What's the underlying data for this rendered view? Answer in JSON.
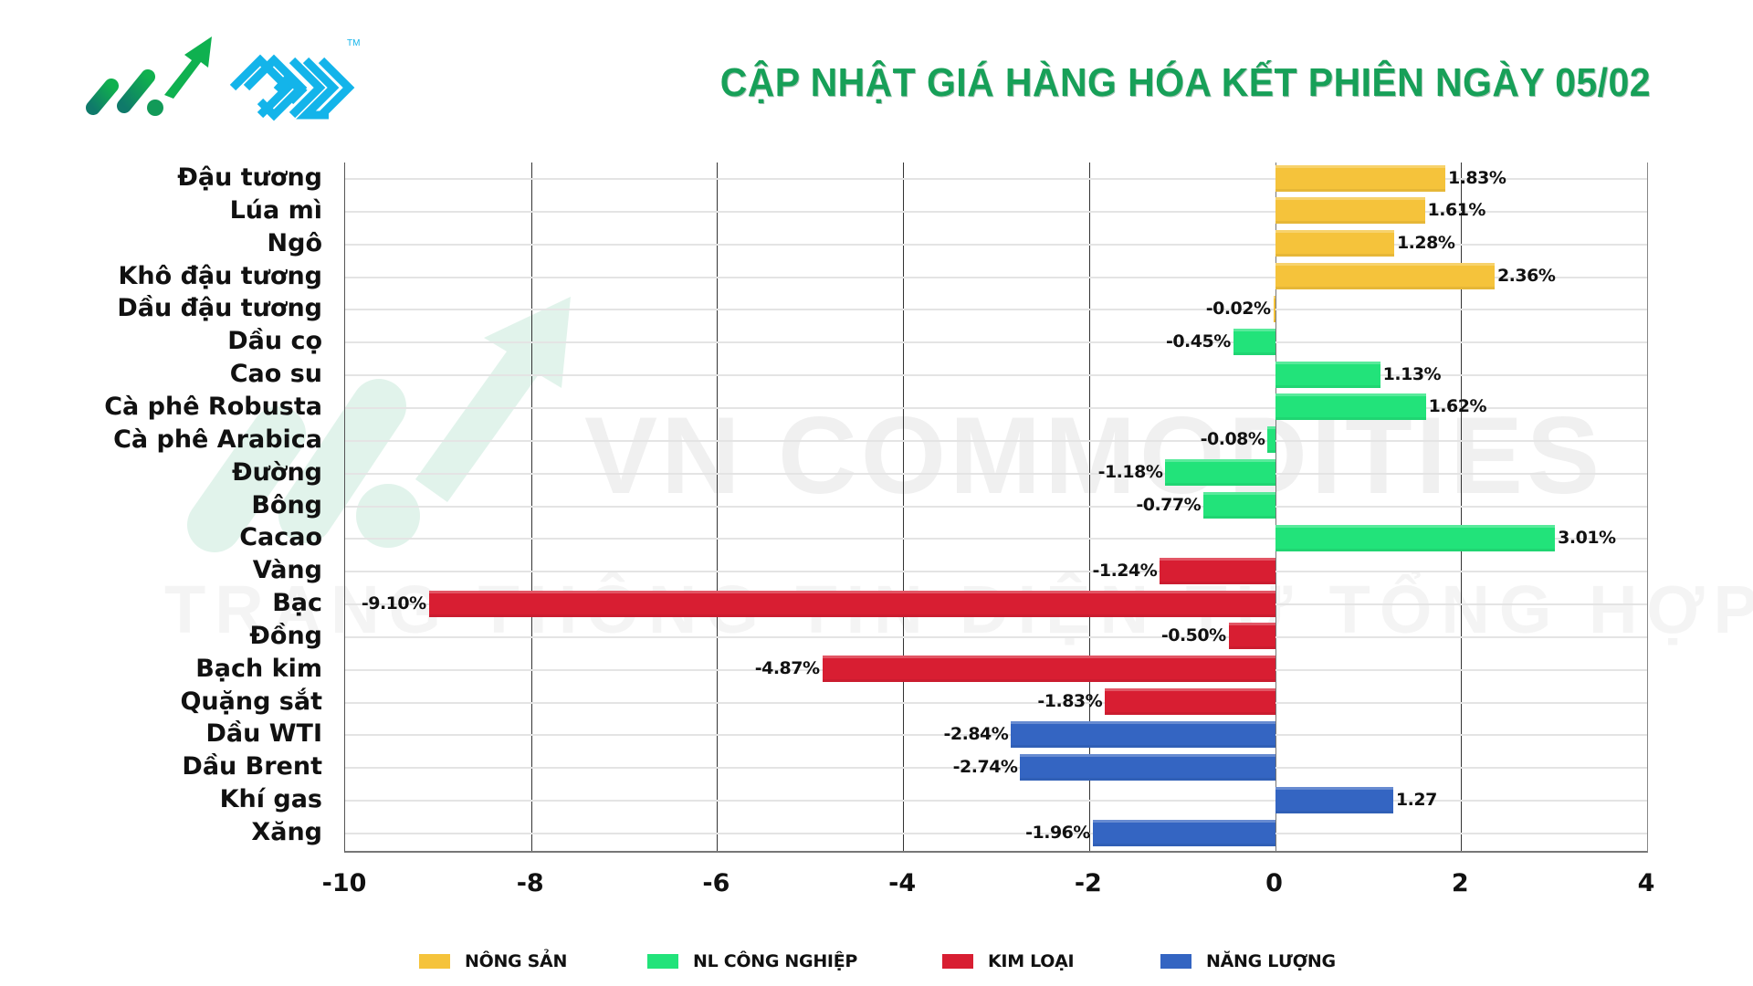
{
  "header": {
    "title": "CẬP NHẬT GIÁ HÀNG HÓA KẾT PHIÊN NGÀY 05/02",
    "logo_trademark": "TM"
  },
  "watermark": {
    "line1": "VN COMMODITIES",
    "line2": "TRANG THÔNG TIN ĐIỆN TỬ TỔNG HỢP"
  },
  "colors": {
    "title": "#17a058",
    "nong_san": "#f5c33b",
    "nl_cong_nghiep": "#22e37a",
    "kim_loai": "#d81e32",
    "nang_luong": "#3465c2"
  },
  "legend": [
    {
      "label": "NÔNG SẢN",
      "color": "#f5c33b"
    },
    {
      "label": "NL CÔNG NGHIỆP",
      "color": "#22e37a"
    },
    {
      "label": "KIM LOẠI",
      "color": "#d81e32"
    },
    {
      "label": "NĂNG LƯỢNG",
      "color": "#3465c2"
    }
  ],
  "chart_data": {
    "type": "bar",
    "orientation": "horizontal",
    "title": "CẬP NHẬT GIÁ HÀNG HÓA KẾT PHIÊN NGÀY 05/02",
    "xlabel": "",
    "ylabel": "",
    "xlim": [
      -10,
      4
    ],
    "xticks": [
      -10,
      -8,
      -6,
      -4,
      -2,
      0,
      2,
      4
    ],
    "grid": true,
    "legend_position": "bottom",
    "categories": [
      "Đậu tương",
      "Lúa mì",
      "Ngô",
      "Khô đậu tương",
      "Dầu đậu tương",
      "Dầu cọ",
      "Cao su",
      "Cà phê Robusta",
      "Cà phê Arabica",
      "Đường",
      "Bông",
      "Cacao",
      "Vàng",
      "Bạc",
      "Đồng",
      "Bạch kim",
      "Quặng sắt",
      "Dầu WTI",
      "Dầu Brent",
      "Khí gas",
      "Xăng"
    ],
    "values": [
      1.83,
      1.61,
      1.28,
      2.36,
      -0.02,
      -0.45,
      1.13,
      1.62,
      -0.08,
      -1.18,
      -0.77,
      3.01,
      -1.24,
      -9.1,
      -0.5,
      -4.87,
      -1.83,
      -2.84,
      -2.74,
      1.27,
      -1.96
    ],
    "labels": [
      "1.83%",
      "1.61%",
      "1.28%",
      "2.36%",
      "-0.02%",
      "-0.45%",
      "1.13%",
      "1.62%",
      "-0.08%",
      "-1.18%",
      "-0.77%",
      "3.01%",
      "-1.24%",
      "-9.10%",
      "-0.50%",
      "-4.87%",
      "-1.83%",
      "-2.84%",
      "-2.74%",
      "1.27",
      "-1.96%"
    ],
    "groups": [
      "NÔNG SẢN",
      "NÔNG SẢN",
      "NÔNG SẢN",
      "NÔNG SẢN",
      "NÔNG SẢN",
      "NL CÔNG NGHIỆP",
      "NL CÔNG NGHIỆP",
      "NL CÔNG NGHIỆP",
      "NL CÔNG NGHIỆP",
      "NL CÔNG NGHIỆP",
      "NL CÔNG NGHIỆP",
      "NL CÔNG NGHIỆP",
      "KIM LOẠI",
      "KIM LOẠI",
      "KIM LOẠI",
      "KIM LOẠI",
      "KIM LOẠI",
      "NĂNG LƯỢNG",
      "NĂNG LƯỢNG",
      "NĂNG LƯỢNG",
      "NĂNG LƯỢNG"
    ],
    "series": [
      {
        "name": "NÔNG SẢN",
        "color": "#f5c33b",
        "items": {
          "Đậu tương": 1.83,
          "Lúa mì": 1.61,
          "Ngô": 1.28,
          "Khô đậu tương": 2.36,
          "Dầu đậu tương": -0.02
        }
      },
      {
        "name": "NL CÔNG NGHIỆP",
        "color": "#22e37a",
        "items": {
          "Dầu cọ": -0.45,
          "Cao su": 1.13,
          "Cà phê Robusta": 1.62,
          "Cà phê Arabica": -0.08,
          "Đường": -1.18,
          "Bông": -0.77,
          "Cacao": 3.01
        }
      },
      {
        "name": "KIM LOẠI",
        "color": "#d81e32",
        "items": {
          "Vàng": -1.24,
          "Bạc": -9.1,
          "Đồng": -0.5,
          "Bạch kim": -4.87,
          "Quặng sắt": -1.83
        }
      },
      {
        "name": "NĂNG LƯỢNG",
        "color": "#3465c2",
        "items": {
          "Dầu WTI": -2.84,
          "Dầu Brent": -2.74,
          "Khí gas": 1.27,
          "Xăng": -1.96
        }
      }
    ]
  }
}
